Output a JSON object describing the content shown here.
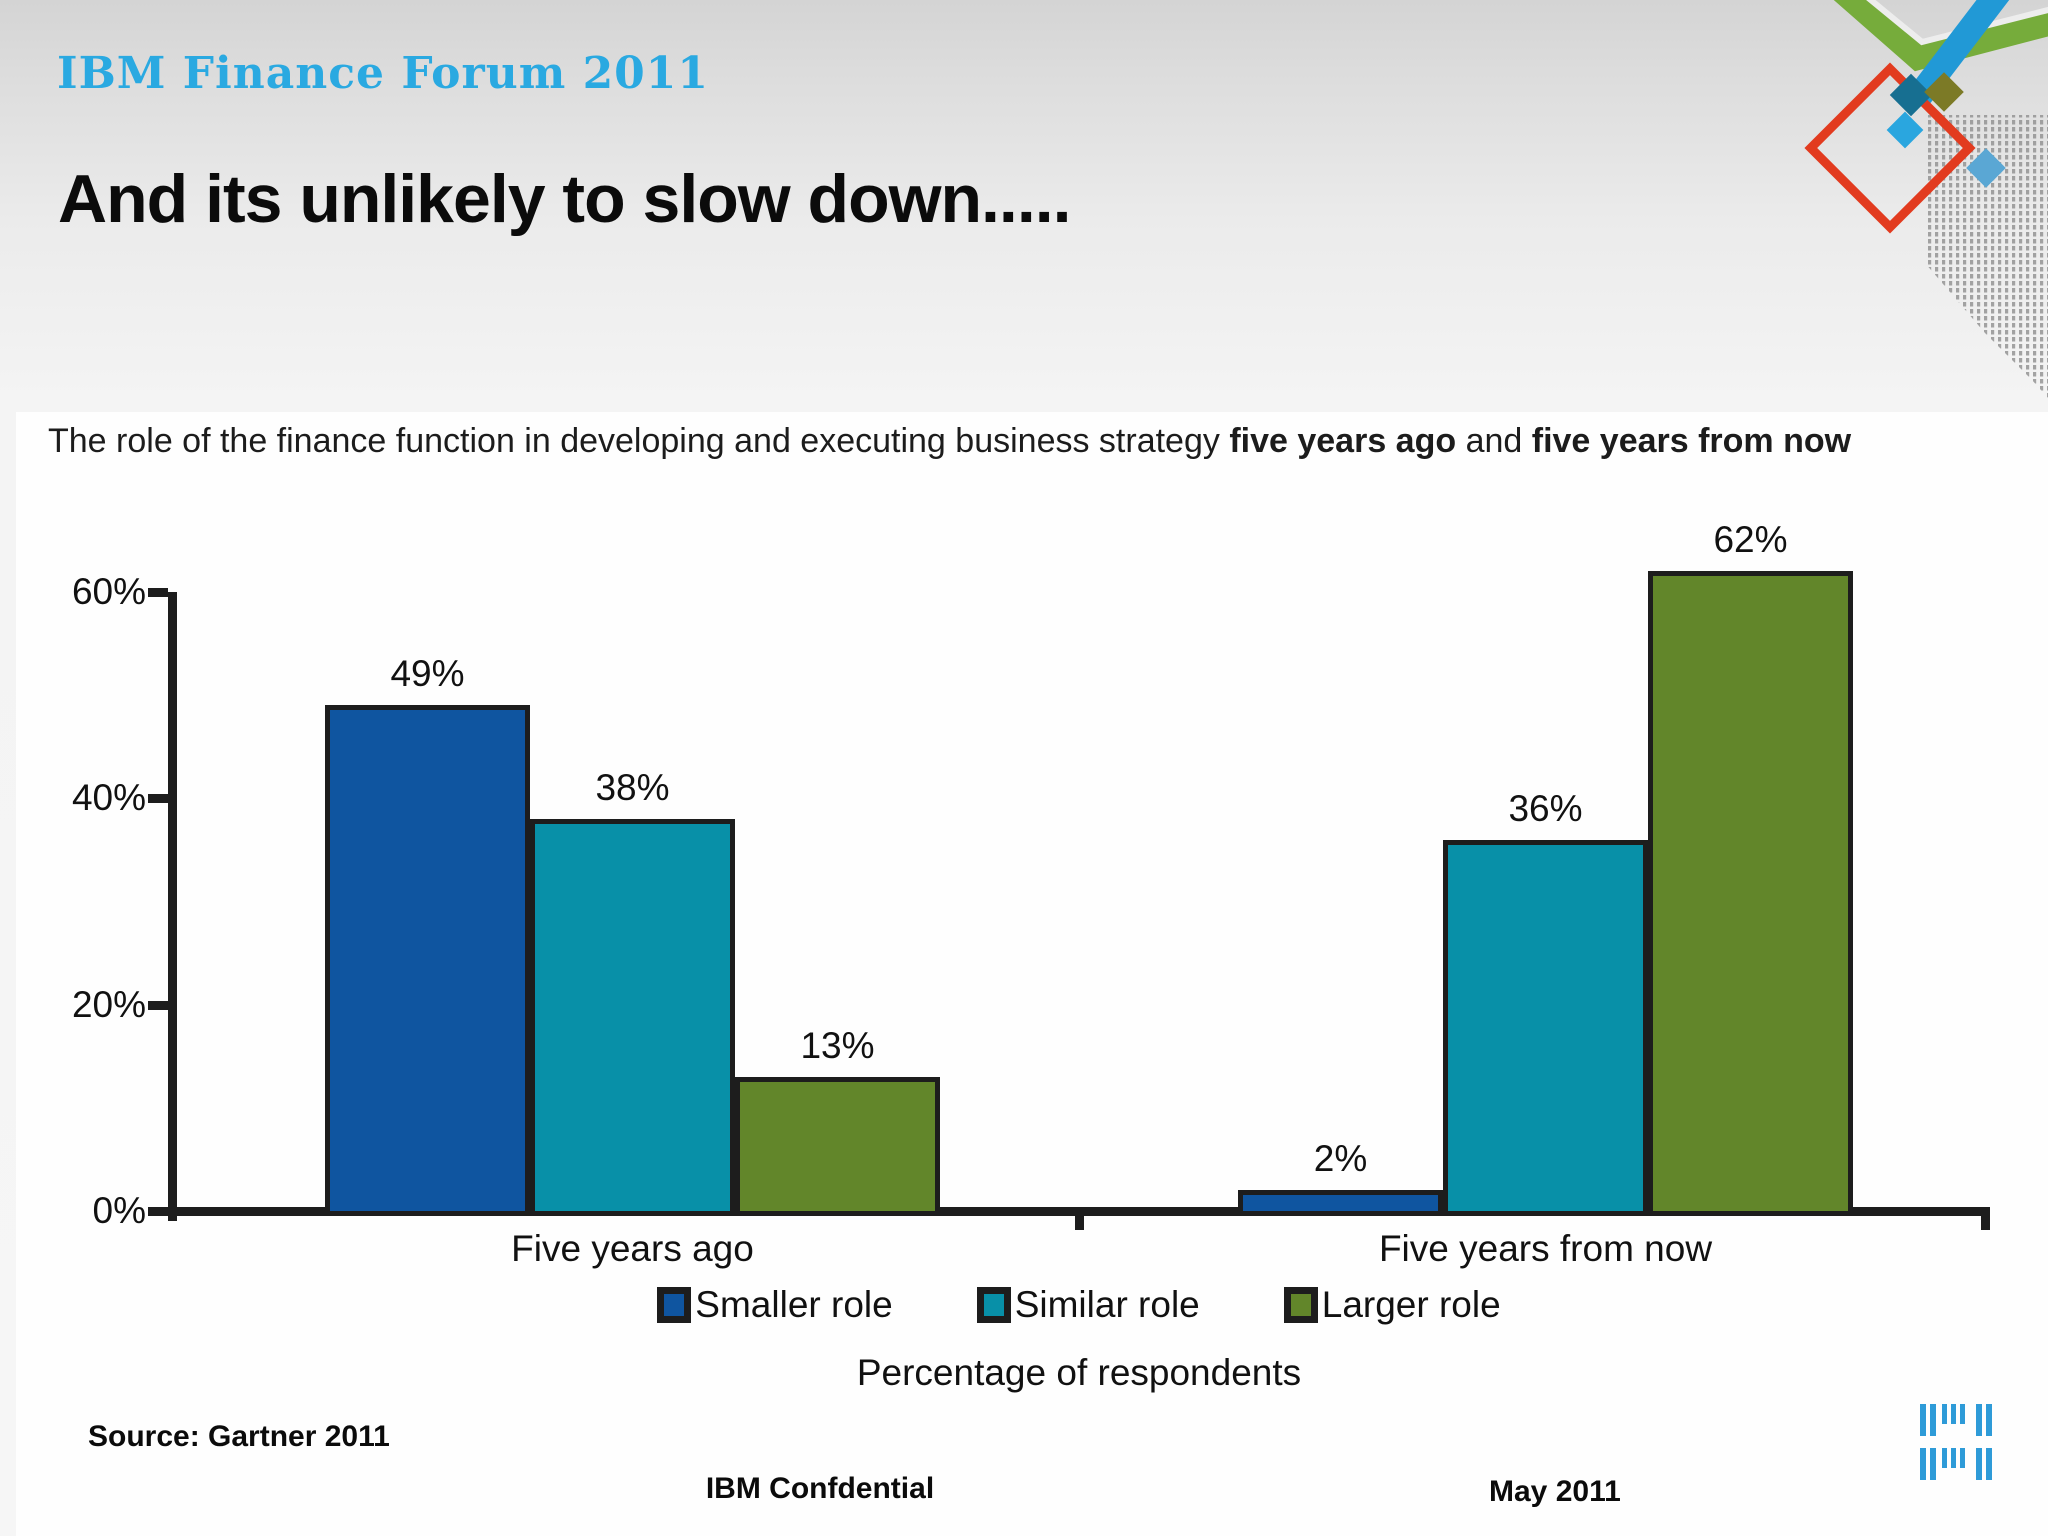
{
  "header": {
    "brand": "IBM Finance Forum 2011"
  },
  "title": "And its unlikely to slow down.....",
  "subtitle": {
    "part1": "The role of the finance function in developing and executing business strategy ",
    "bold1": "five years ago",
    "part2": " and ",
    "bold2": "five years from now"
  },
  "chart_data": {
    "type": "bar",
    "categories": [
      "Five years ago",
      "Five years from now"
    ],
    "series": [
      {
        "name": "Smaller role",
        "color": "#0f55a0",
        "values": [
          49,
          2
        ],
        "value_labels": [
          "49%",
          "2%"
        ]
      },
      {
        "name": "Similar role",
        "color": "#0890a8",
        "values": [
          38,
          36
        ],
        "value_labels": [
          "38%",
          "36%"
        ]
      },
      {
        "name": "Larger role",
        "color": "#62862a",
        "values": [
          13,
          62
        ],
        "value_labels": [
          "13%",
          "62%"
        ]
      }
    ],
    "yticks": [
      {
        "label": "60%",
        "value": 60
      },
      {
        "label": "40%",
        "value": 40
      },
      {
        "label": "20%",
        "value": 20
      },
      {
        "label": "0%",
        "value": 0
      }
    ],
    "ylim": [
      0,
      60
    ],
    "xlabel": "Percentage of respondents",
    "legend_position": "bottom",
    "grid": false
  },
  "footer": {
    "source": "Source: Gartner 2011",
    "confidential": "IBM Confdential",
    "date": "May 2011"
  },
  "colors": {
    "brand_blue": "#2aa9e1",
    "deco_green": "#76ac3b",
    "deco_blue": "#2199d6",
    "deco_red": "#e23b1f",
    "deco_olive": "#7c7a26",
    "deco_teal": "#176f91",
    "axis_black": "#1d1d1d",
    "logo_blue": "#2e9bd8"
  }
}
